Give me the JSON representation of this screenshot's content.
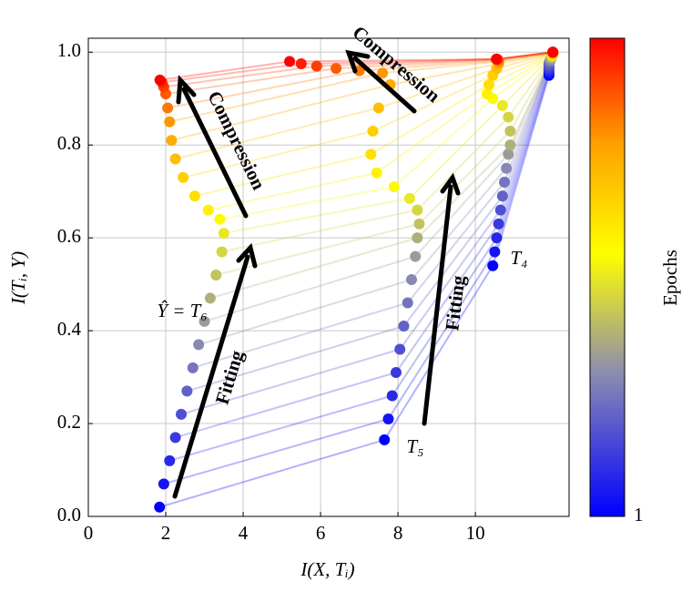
{
  "chart_data": {
    "type": "scatter",
    "x_label": "I(X, Tᵢ)",
    "y_label": "I(Tᵢ, Y)",
    "xlim": [
      0,
      12.42
    ],
    "ylim": [
      0,
      1.03
    ],
    "xticks": [
      0,
      2,
      4,
      6,
      8,
      10
    ],
    "yticks": [
      {
        "value": 0,
        "label": "0.0"
      },
      0.2,
      0.4,
      0.6,
      0.8,
      {
        "value": 1,
        "label": "1.0"
      }
    ],
    "grid": true,
    "colorbar_label": "Epochs",
    "clim": [
      1,
      25
    ],
    "colorbar_ticks": [
      1
    ],
    "colormap": [
      [
        0,
        "#0000ff"
      ],
      [
        0.3,
        "#8c8cb0"
      ],
      [
        0.55,
        "#ffff00"
      ],
      [
        0.78,
        "#ffa000"
      ],
      [
        1,
        "#ff0000"
      ]
    ],
    "series": [
      {
        "label": "Ŷ = T₆",
        "x": [
          1.84,
          1.95,
          2.1,
          2.25,
          2.4,
          2.55,
          2.7,
          2.85,
          3.0,
          3.15,
          3.3,
          3.45,
          3.5,
          3.4,
          3.1,
          2.75,
          2.45,
          2.25,
          2.15,
          2.1,
          2.05,
          2.0,
          1.95,
          1.9,
          1.85
        ],
        "values": [
          0.02,
          0.07,
          0.12,
          0.17,
          0.22,
          0.27,
          0.32,
          0.37,
          0.42,
          0.47,
          0.52,
          0.57,
          0.61,
          0.64,
          0.66,
          0.69,
          0.73,
          0.77,
          0.81,
          0.85,
          0.88,
          0.91,
          0.925,
          0.935,
          0.94
        ]
      },
      {
        "label": "T₅",
        "x": [
          7.65,
          7.75,
          7.85,
          7.95,
          8.05,
          8.15,
          8.25,
          8.35,
          8.45,
          8.5,
          8.55,
          8.5,
          8.3,
          7.9,
          7.45,
          7.3,
          7.35,
          7.5,
          7.8,
          7.6,
          7.0,
          6.4,
          5.9,
          5.5,
          5.2
        ],
        "values": [
          0.165,
          0.21,
          0.26,
          0.31,
          0.36,
          0.41,
          0.46,
          0.51,
          0.56,
          0.6,
          0.63,
          0.66,
          0.685,
          0.71,
          0.74,
          0.78,
          0.83,
          0.88,
          0.93,
          0.955,
          0.96,
          0.965,
          0.97,
          0.975,
          0.98
        ]
      },
      {
        "label": "T₄",
        "x": [
          10.45,
          10.5,
          10.55,
          10.6,
          10.65,
          10.7,
          10.75,
          10.8,
          10.85,
          10.9,
          10.9,
          10.85,
          10.7,
          10.45,
          10.3,
          10.35,
          10.45,
          10.55,
          10.6,
          10.6,
          10.6,
          10.58,
          10.56,
          10.55,
          10.54
        ],
        "values": [
          0.54,
          0.57,
          0.6,
          0.63,
          0.66,
          0.69,
          0.72,
          0.75,
          0.78,
          0.8,
          0.83,
          0.86,
          0.885,
          0.9,
          0.91,
          0.93,
          0.95,
          0.965,
          0.975,
          0.98,
          0.982,
          0.984,
          0.985,
          0.985,
          0.985
        ]
      },
      {
        "x": [
          11.9,
          11.9,
          11.9,
          11.9,
          11.9,
          11.9,
          11.92,
          11.94,
          11.95,
          11.96,
          11.97,
          11.98,
          11.99,
          12.0,
          12.0,
          12.0,
          12.0,
          12.0,
          12.0,
          12.0,
          12.0,
          12.0,
          12.0,
          12.0,
          12.0
        ],
        "values": [
          0.95,
          0.955,
          0.96,
          0.965,
          0.97,
          0.975,
          0.98,
          0.983,
          0.986,
          0.988,
          0.99,
          0.992,
          0.993,
          0.994,
          0.995,
          0.996,
          0.997,
          0.998,
          0.998,
          0.999,
          0.999,
          1.0,
          1.0,
          1.0,
          1.0
        ]
      }
    ],
    "annotations": [
      "Compression",
      "Compression",
      "Fitting",
      "Fitting"
    ]
  }
}
